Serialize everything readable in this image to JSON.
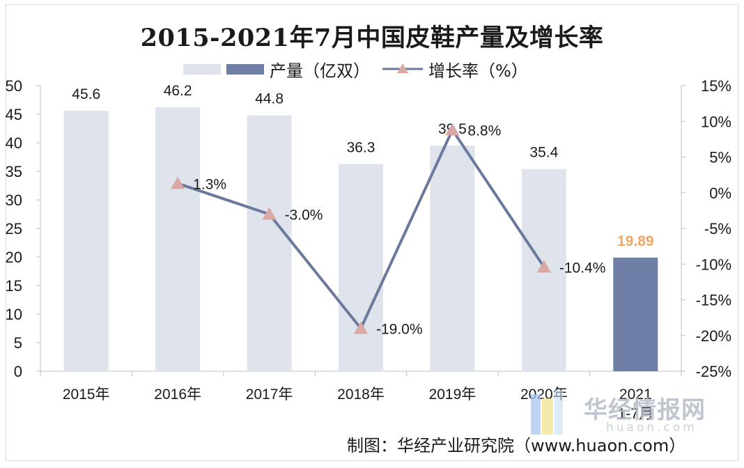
{
  "chart_data": {
    "type": "bar+line",
    "title": "2015-2021年7月中国皮鞋产量及增长率",
    "categories": [
      "2015年",
      "2016年",
      "2017年",
      "2018年",
      "2019年",
      "2020年",
      "2021 1-7月"
    ],
    "category_lines": [
      [
        "2015年"
      ],
      [
        "2016年"
      ],
      [
        "2017年"
      ],
      [
        "2018年"
      ],
      [
        "2019年"
      ],
      [
        "2020年"
      ],
      [
        "2021",
        "1-7月"
      ]
    ],
    "series": [
      {
        "name": "产量（亿双）",
        "kind": "bar",
        "axis": "left",
        "values": [
          45.6,
          46.2,
          44.8,
          36.3,
          39.5,
          35.4,
          19.89
        ],
        "labels": [
          "45.6",
          "46.2",
          "44.8",
          "36.3",
          "39.5",
          "35.4",
          "19.89"
        ],
        "color": "#dfe3ec",
        "highlight_color": "#6e7ea5",
        "highlight_label_color": "#f4a65c",
        "highlight_index": 6
      },
      {
        "name": "增长率（%）",
        "kind": "line",
        "axis": "right",
        "values": [
          null,
          1.3,
          -3.0,
          -19.0,
          8.8,
          -10.4,
          null
        ],
        "labels": [
          "",
          "1.3%",
          "-3.0%",
          "-19.0%",
          "8.8%",
          "-10.4%",
          ""
        ],
        "line_color": "#6b7a9c",
        "marker_color": "#d9a7a4"
      }
    ],
    "y_left": {
      "range": [
        0,
        50
      ],
      "ticks": [
        "0",
        "5",
        "10",
        "15",
        "20",
        "25",
        "30",
        "35",
        "40",
        "45",
        "50"
      ]
    },
    "y_right": {
      "range": [
        -25,
        15
      ],
      "ticks": [
        "-25%",
        "-20%",
        "-15%",
        "-10%",
        "-5%",
        "0%",
        "5%",
        "10%",
        "15%"
      ]
    },
    "legend_position": "top",
    "grid": false
  },
  "credit": "制图：华经产业研究院（www.huaon.com）",
  "watermark": {
    "name": "华经情报网",
    "url": "huaon.com"
  }
}
